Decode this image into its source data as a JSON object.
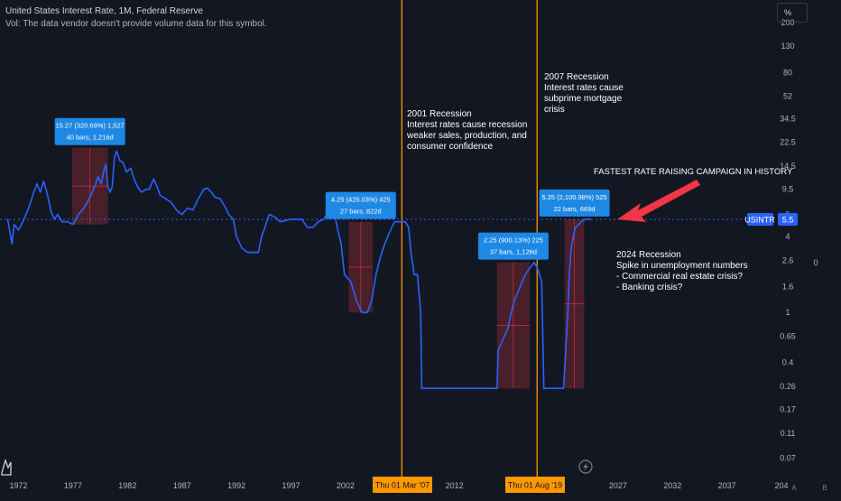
{
  "header": {
    "title": "United States Interest Rate, 1M, Federal Reserve",
    "volume_note": "Vol: The data vendor doesn't provide volume data for this symbol."
  },
  "price_scale": {
    "unit_button": "%",
    "ticks": [
      "200",
      "130",
      "80",
      "52",
      "34.5",
      "22.5",
      "14.5",
      "9.5",
      "6",
      "4",
      "2.6",
      "1.6",
      "1",
      "0.65",
      "0.4",
      "0.26",
      "0.17",
      "0.11",
      "0.07"
    ],
    "side_value": "0",
    "symbol_tag": "USINTR",
    "last_value": "5.5"
  },
  "time_scale": {
    "ticks": [
      "1972",
      "1977",
      "1982",
      "1987",
      "1992",
      "1997",
      "2002",
      "2012",
      "2027",
      "2032",
      "2037",
      "204"
    ],
    "highlight_labels": [
      "Thu 01 Mar '07",
      "Thu 01 Aug '19"
    ],
    "corner_labels": [
      "A",
      "B"
    ]
  },
  "colors": {
    "background": "#131722",
    "series_line": "#2962ff",
    "vertical_markers": "#ff9800",
    "annotation_box": "#1e88e5",
    "range_fill": "#8b2a32",
    "arrow": "#f23645"
  },
  "range_measures": [
    {
      "line1": "15.27 (320.69%) 1,527",
      "line2": "40 bars, 1,216d"
    },
    {
      "line1": "4.25 (425.03%) 425",
      "line2": "27 bars, 822d"
    },
    {
      "line1": "2.25 (900.13%) 225",
      "line2": "37 bars, 1,126d"
    },
    {
      "line1": "5.25 (2,100.98%) 525",
      "line2": "22 bars, 669d"
    }
  ],
  "notes": [
    {
      "lines": [
        "2001 Recession",
        "Interest rates cause recession",
        "weaker sales, production, and",
        "consumer confidence"
      ]
    },
    {
      "lines": [
        "2007 Recession",
        "Interest rates cause",
        "subprime mortgage",
        "crisis"
      ]
    },
    {
      "lines": [
        "FASTEST RATE RAISING CAMPAIGN IN HISTORY"
      ]
    },
    {
      "lines": [
        "2024 Recession",
        "Spike in unemployment numbers",
        "- Commercial real estate crisis?",
        "- Banking crisis?"
      ]
    }
  ],
  "chart_data": {
    "type": "line",
    "series": [
      {
        "name": "USINTR",
        "x": [
          1971.0,
          1971.4,
          1971.6,
          1972.0,
          1972.5,
          1973.0,
          1973.4,
          1973.7,
          1974.0,
          1974.3,
          1974.6,
          1975.0,
          1975.3,
          1975.6,
          1976.0,
          1976.5,
          1977.0,
          1977.5,
          1978.0,
          1978.5,
          1979.0,
          1979.3,
          1979.6,
          1979.8,
          1980.0,
          1980.2,
          1980.4,
          1980.6,
          1980.8,
          1981.0,
          1981.3,
          1981.6,
          1981.9,
          1982.3,
          1982.6,
          1982.9,
          1983.3,
          1983.7,
          1984.0,
          1984.4,
          1984.7,
          1985.0,
          1985.5,
          1986.0,
          1986.5,
          1987.0,
          1987.5,
          1988.0,
          1988.5,
          1989.0,
          1989.3,
          1989.7,
          1990.0,
          1990.5,
          1990.9,
          1991.3,
          1991.7,
          1992.0,
          1992.5,
          1993.0,
          1993.5,
          1994.0,
          1994.3,
          1994.7,
          1995.0,
          1995.5,
          1996.0,
          1997.0,
          1998.0,
          1998.5,
          1999.0,
          1999.5,
          2000.0,
          2000.5,
          2001.0,
          2001.3,
          2001.6,
          2001.9,
          2002.5,
          2003.0,
          2003.5,
          2004.0,
          2004.4,
          2004.8,
          2005.2,
          2005.6,
          2006.0,
          2006.5,
          2007.0,
          2007.5,
          2007.8,
          2008.0,
          2008.3,
          2008.6,
          2008.9,
          2009.0,
          2010.0,
          2012.0,
          2014.0,
          2015.9,
          2016.0,
          2016.9,
          2017.2,
          2017.5,
          2017.9,
          2018.2,
          2018.5,
          2018.9,
          2019.3,
          2019.6,
          2019.8,
          2020.0,
          2020.2,
          2021.0,
          2022.0,
          2022.2,
          2022.4,
          2022.5,
          2022.7,
          2022.9,
          2023.1,
          2023.4,
          2023.6,
          2024.0,
          2024.5
        ],
        "y": [
          5.5,
          3.5,
          5.0,
          4.5,
          5.5,
          7.0,
          9.0,
          10.5,
          9.0,
          11.0,
          9.0,
          6.25,
          5.5,
          6.0,
          5.25,
          5.25,
          5.0,
          6.0,
          6.75,
          8.0,
          10.0,
          12.0,
          10.5,
          13.0,
          15.0,
          10.0,
          9.0,
          10.0,
          17.0,
          19.0,
          16.0,
          15.5,
          13.0,
          14.0,
          11.5,
          10.0,
          9.0,
          9.5,
          9.5,
          11.5,
          10.0,
          8.5,
          8.0,
          7.5,
          6.5,
          6.0,
          6.75,
          6.5,
          8.0,
          9.5,
          9.75,
          9.0,
          8.25,
          8.0,
          7.0,
          6.0,
          5.5,
          4.0,
          3.25,
          3.0,
          3.0,
          3.0,
          4.0,
          5.0,
          6.0,
          5.75,
          5.25,
          5.5,
          5.5,
          4.75,
          4.75,
          5.25,
          5.5,
          6.5,
          6.0,
          4.5,
          3.5,
          2.0,
          1.75,
          1.25,
          1.0,
          1.0,
          1.25,
          2.0,
          2.75,
          3.5,
          4.25,
          5.25,
          5.25,
          5.25,
          4.75,
          3.0,
          2.0,
          2.0,
          1.0,
          0.25,
          0.25,
          0.25,
          0.25,
          0.25,
          0.5,
          0.75,
          1.0,
          1.25,
          1.5,
          1.75,
          2.0,
          2.25,
          2.5,
          2.25,
          2.0,
          1.75,
          0.25,
          0.25,
          0.25,
          0.5,
          1.0,
          1.75,
          3.25,
          4.0,
          4.75,
          5.0,
          5.25,
          5.5,
          5.5
        ]
      }
    ],
    "xlim": [
      1970.3,
      2041.5
    ],
    "ylim": [
      0.055,
      240
    ],
    "yscale": "log",
    "vertical_markers_x": [
      2007.17,
      2019.58
    ],
    "ranges": [
      {
        "from": [
          1976.9,
          5.0
        ],
        "to": [
          1980.2,
          20.3
        ]
      },
      {
        "from": [
          2002.3,
          1.0
        ],
        "to": [
          2004.5,
          5.25
        ]
      },
      {
        "from": [
          2015.9,
          0.25
        ],
        "to": [
          2018.9,
          2.5
        ]
      },
      {
        "from": [
          2022.1,
          0.25
        ],
        "to": [
          2023.9,
          5.5
        ]
      }
    ],
    "grid": false,
    "legend": "none"
  }
}
